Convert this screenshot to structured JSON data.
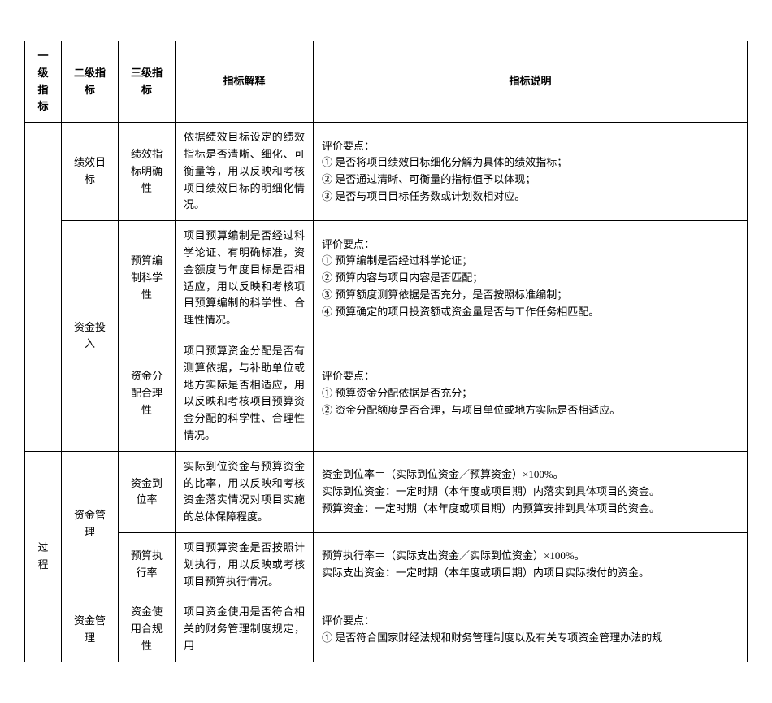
{
  "headers": {
    "col1": "一级指标",
    "col2": "二级指标",
    "col3": "三级指标",
    "col4": "指标解释",
    "col5": "指标说明"
  },
  "rows": [
    {
      "col1": "",
      "col2": "",
      "col3_a": "绩效目标",
      "col3_b": "绩效指标明确性",
      "explain": "依据绩效目标设定的绩效指标是否清晰、细化、可衡量等，用以反映和考核项目绩效目标的明细化情况。",
      "desc": "评价要点：\n① 是否将项目绩效目标细化分解为具体的绩效指标；\n② 是否通过清晰、可衡量的指标值予以体现；\n③ 是否与项目目标任务数或计划数相对应。"
    },
    {
      "col2": "资金投入",
      "col3": "预算编制科学性",
      "explain": "项目预算编制是否经过科学论证、有明确标准，资金额度与年度目标是否相适应，用以反映和考核项目预算编制的科学性、合理性情况。",
      "desc": "评价要点：\n① 预算编制是否经过科学论证；\n② 预算内容与项目内容是否匹配；\n③ 预算额度测算依据是否充分，是否按照标准编制；\n④ 预算确定的项目投资额或资金量是否与工作任务相匹配。"
    },
    {
      "col3": "资金分配合理性",
      "explain": "项目预算资金分配是否有测算依据，与补助单位或地方实际是否相适应，用以反映和考核项目预算资金分配的科学性、合理性情况。",
      "desc": "评价要点：\n① 预算资金分配依据是否充分；\n② 资金分配额度是否合理，与项目单位或地方实际是否相适应。"
    },
    {
      "col1": "过程",
      "col2": "资金管理",
      "col3": "资金到位率",
      "explain": "实际到位资金与预算资金的比率，用以反映和考核资金落实情况对项目实施的总体保障程度。",
      "desc": "资金到位率＝（实际到位资金／预算资金）×100%。\n实际到位资金：一定时期（本年度或项目期）内落实到具体项目的资金。\n预算资金：一定时期（本年度或项目期）内预算安排到具体项目的资金。"
    },
    {
      "col3": "预算执行率",
      "explain": "项目预算资金是否按照计划执行，用以反映或考核项目预算执行情况。",
      "desc": "预算执行率＝（实际支出资金／实际到位资金）×100%。\n实际支出资金：一定时期（本年度或项目期）内项目实际拨付的资金。"
    },
    {
      "col2": "资金管理",
      "col3": "资金使用合规性",
      "explain": "项目资金使用是否符合相关的财务管理制度规定，用",
      "desc": "评价要点：\n① 是否符合国家财经法规和财务管理制度以及有关专项资金管理办法的规"
    }
  ]
}
